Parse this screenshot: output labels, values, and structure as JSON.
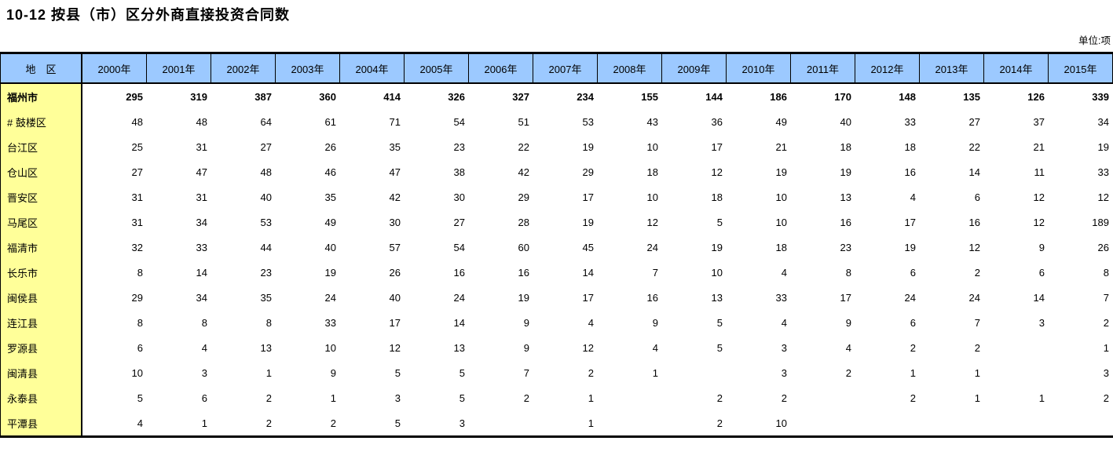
{
  "page": {
    "title": "10-12 按县（市）区分外商直接投资合同数",
    "unit_label": "单位:项"
  },
  "table": {
    "region_header": "地　区",
    "year_headers": [
      "2000年",
      "2001年",
      "2002年",
      "2003年",
      "2004年",
      "2005年",
      "2006年",
      "2007年",
      "2008年",
      "2009年",
      "2010年",
      "2011年",
      "2012年",
      "2013年",
      "2014年",
      "2015年"
    ],
    "rows": [
      {
        "region": "福州市",
        "bold": true,
        "values": [
          "295",
          "319",
          "387",
          "360",
          "414",
          "326",
          "327",
          "234",
          "155",
          "144",
          "186",
          "170",
          "148",
          "135",
          "126",
          "339"
        ]
      },
      {
        "region": "# 鼓楼区",
        "bold": false,
        "values": [
          "48",
          "48",
          "64",
          "61",
          "71",
          "54",
          "51",
          "53",
          "43",
          "36",
          "49",
          "40",
          "33",
          "27",
          "37",
          "34"
        ]
      },
      {
        "region": "台江区",
        "bold": false,
        "values": [
          "25",
          "31",
          "27",
          "26",
          "35",
          "23",
          "22",
          "19",
          "10",
          "17",
          "21",
          "18",
          "18",
          "22",
          "21",
          "19"
        ]
      },
      {
        "region": "仓山区",
        "bold": false,
        "values": [
          "27",
          "47",
          "48",
          "46",
          "47",
          "38",
          "42",
          "29",
          "18",
          "12",
          "19",
          "19",
          "16",
          "14",
          "11",
          "33"
        ]
      },
      {
        "region": "晋安区",
        "bold": false,
        "values": [
          "31",
          "31",
          "40",
          "35",
          "42",
          "30",
          "29",
          "17",
          "10",
          "18",
          "10",
          "13",
          "4",
          "6",
          "12",
          "12"
        ]
      },
      {
        "region": "马尾区",
        "bold": false,
        "values": [
          "31",
          "34",
          "53",
          "49",
          "30",
          "27",
          "28",
          "19",
          "12",
          "5",
          "10",
          "16",
          "17",
          "16",
          "12",
          "189"
        ]
      },
      {
        "region": "福清市",
        "bold": false,
        "values": [
          "32",
          "33",
          "44",
          "40",
          "57",
          "54",
          "60",
          "45",
          "24",
          "19",
          "18",
          "23",
          "19",
          "12",
          "9",
          "26"
        ]
      },
      {
        "region": "长乐市",
        "bold": false,
        "values": [
          "8",
          "14",
          "23",
          "19",
          "26",
          "16",
          "16",
          "14",
          "7",
          "10",
          "4",
          "8",
          "6",
          "2",
          "6",
          "8"
        ]
      },
      {
        "region": "闽侯县",
        "bold": false,
        "values": [
          "29",
          "34",
          "35",
          "24",
          "40",
          "24",
          "19",
          "17",
          "16",
          "13",
          "33",
          "17",
          "24",
          "24",
          "14",
          "7"
        ]
      },
      {
        "region": "连江县",
        "bold": false,
        "values": [
          "8",
          "8",
          "8",
          "33",
          "17",
          "14",
          "9",
          "4",
          "9",
          "5",
          "4",
          "9",
          "6",
          "7",
          "3",
          "2"
        ]
      },
      {
        "region": "罗源县",
        "bold": false,
        "values": [
          "6",
          "4",
          "13",
          "10",
          "12",
          "13",
          "9",
          "12",
          "4",
          "5",
          "3",
          "4",
          "2",
          "2",
          "",
          "1"
        ]
      },
      {
        "region": "闽清县",
        "bold": false,
        "values": [
          "10",
          "3",
          "1",
          "9",
          "5",
          "5",
          "7",
          "2",
          "1",
          "",
          "3",
          "2",
          "1",
          "1",
          "",
          "3"
        ]
      },
      {
        "region": "永泰县",
        "bold": false,
        "values": [
          "5",
          "6",
          "2",
          "1",
          "3",
          "5",
          "2",
          "1",
          "",
          "2",
          "2",
          "",
          "2",
          "1",
          "1",
          "2"
        ]
      },
      {
        "region": "平潭县",
        "bold": false,
        "values": [
          "4",
          "1",
          "2",
          "2",
          "5",
          "3",
          "",
          "1",
          "",
          "2",
          "10",
          "",
          "",
          "",
          "",
          ""
        ]
      }
    ]
  }
}
